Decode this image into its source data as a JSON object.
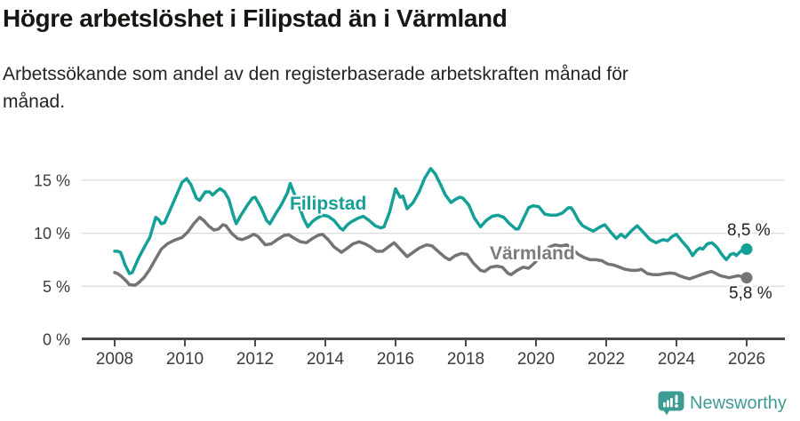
{
  "chart_data": {
    "type": "line",
    "title": "Högre arbetslöshet i Filipstad än i Värmland",
    "subtitle": "Arbetssökande som andel av den registerbaserade arbetskraften månad för månad.",
    "subtitle_lines": [
      "Arbetssökande som andel av den registerbaserade arbetskraften månad för",
      "månad."
    ],
    "unit": "%",
    "grid": "horizontal",
    "legend_position": "inline-labels",
    "x_axis": {
      "tick_values": [
        2008,
        2010,
        2012,
        2014,
        2016,
        2018,
        2020,
        2022,
        2024,
        2026
      ],
      "tick_labels": [
        "2008",
        "2010",
        "2012",
        "2014",
        "2016",
        "2018",
        "2020",
        "2022",
        "2024",
        "2026"
      ],
      "range": [
        2007.05,
        2027.1
      ]
    },
    "y_axis": {
      "tick_values": [
        0,
        5,
        10,
        15
      ],
      "tick_labels": [
        "0 %",
        "5 %",
        "10 %",
        "15 %"
      ],
      "range": [
        0,
        17
      ]
    },
    "series": [
      {
        "name": "Filipstad",
        "line_label": "Filipstad",
        "end_value_label": "8,5 %",
        "end_value": 8.5,
        "color": "#14A096",
        "x": [
          2008.0,
          2008.08,
          2008.17,
          2008.3,
          2008.42,
          2008.5,
          2008.67,
          2008.83,
          2009.0,
          2009.17,
          2009.25,
          2009.33,
          2009.42,
          2009.58,
          2009.75,
          2009.92,
          2010.05,
          2010.17,
          2010.33,
          2010.42,
          2010.58,
          2010.7,
          2010.79,
          2010.92,
          2011.0,
          2011.13,
          2011.25,
          2011.38,
          2011.46,
          2011.58,
          2011.75,
          2011.92,
          2012.0,
          2012.17,
          2012.33,
          2012.42,
          2012.58,
          2012.75,
          2012.92,
          2013.0,
          2013.13,
          2013.25,
          2013.38,
          2013.5,
          2013.63,
          2013.75,
          2013.92,
          2014.08,
          2014.25,
          2014.42,
          2014.5,
          2014.63,
          2014.75,
          2014.92,
          2015.08,
          2015.25,
          2015.42,
          2015.58,
          2015.67,
          2015.83,
          2016.0,
          2016.13,
          2016.21,
          2016.33,
          2016.5,
          2016.67,
          2016.83,
          2017.0,
          2017.13,
          2017.25,
          2017.42,
          2017.58,
          2017.71,
          2017.83,
          2017.92,
          2018.08,
          2018.25,
          2018.42,
          2018.58,
          2018.75,
          2018.92,
          2019.08,
          2019.25,
          2019.42,
          2019.5,
          2019.63,
          2019.79,
          2019.92,
          2020.08,
          2020.25,
          2020.42,
          2020.58,
          2020.75,
          2020.92,
          2021.0,
          2021.08,
          2021.21,
          2021.33,
          2021.5,
          2021.63,
          2021.83,
          2021.96,
          2022.13,
          2022.29,
          2022.42,
          2022.54,
          2022.71,
          2022.88,
          2023.08,
          2023.25,
          2023.42,
          2023.54,
          2023.63,
          2023.75,
          2023.88,
          2024.0,
          2024.17,
          2024.33,
          2024.46,
          2024.58,
          2024.67,
          2024.75,
          2024.88,
          2025.0,
          2025.08,
          2025.17,
          2025.29,
          2025.42,
          2025.54,
          2025.63,
          2025.71,
          2025.83,
          2025.92,
          2026.0
        ],
        "y": [
          8.3,
          8.3,
          8.2,
          7.0,
          6.2,
          6.3,
          7.6,
          8.6,
          9.6,
          11.5,
          11.3,
          10.9,
          11.0,
          12.2,
          13.5,
          14.8,
          15.15,
          14.6,
          13.3,
          13.1,
          13.9,
          13.9,
          13.6,
          14.0,
          14.2,
          13.9,
          13.2,
          11.7,
          10.9,
          11.6,
          12.5,
          13.3,
          13.4,
          12.4,
          11.2,
          10.9,
          11.8,
          12.7,
          13.8,
          14.7,
          13.6,
          12.6,
          11.4,
          10.6,
          11.1,
          11.4,
          11.7,
          11.6,
          11.2,
          10.5,
          10.3,
          10.8,
          11.1,
          11.4,
          11.6,
          11.2,
          10.7,
          10.5,
          10.6,
          12.0,
          14.2,
          13.4,
          13.5,
          12.3,
          12.9,
          13.9,
          15.2,
          16.1,
          15.6,
          14.8,
          13.6,
          12.9,
          13.2,
          13.4,
          13.3,
          12.7,
          11.4,
          10.6,
          11.2,
          11.6,
          11.7,
          11.5,
          10.9,
          10.4,
          10.4,
          11.3,
          12.4,
          12.6,
          12.5,
          11.8,
          11.7,
          11.7,
          11.9,
          12.4,
          12.4,
          12.0,
          11.2,
          10.7,
          10.4,
          10.2,
          10.6,
          10.8,
          10.1,
          9.5,
          9.9,
          9.6,
          10.2,
          10.7,
          10.0,
          9.4,
          9.1,
          9.3,
          9.4,
          9.3,
          9.7,
          9.9,
          9.2,
          8.6,
          7.9,
          8.4,
          8.6,
          8.5,
          9.0,
          9.1,
          8.9,
          8.6,
          8.0,
          7.5,
          8.0,
          8.1,
          7.9,
          8.3,
          8.5,
          8.5
        ]
      },
      {
        "name": "Värmland",
        "line_label": "Värmland",
        "end_value_label": "5,8 %",
        "end_value": 5.8,
        "color": "#747474",
        "x": [
          2008.0,
          2008.08,
          2008.17,
          2008.33,
          2008.42,
          2008.58,
          2008.67,
          2008.83,
          2009.0,
          2009.17,
          2009.33,
          2009.5,
          2009.67,
          2009.75,
          2009.92,
          2010.08,
          2010.25,
          2010.42,
          2010.54,
          2010.67,
          2010.83,
          2010.96,
          2011.08,
          2011.17,
          2011.33,
          2011.5,
          2011.63,
          2011.79,
          2011.96,
          2012.08,
          2012.29,
          2012.46,
          2012.63,
          2012.83,
          2012.96,
          2013.13,
          2013.29,
          2013.46,
          2013.63,
          2013.79,
          2013.92,
          2014.08,
          2014.25,
          2014.46,
          2014.63,
          2014.79,
          2014.96,
          2015.13,
          2015.29,
          2015.46,
          2015.63,
          2015.79,
          2015.96,
          2016.13,
          2016.33,
          2016.5,
          2016.67,
          2016.88,
          2017.04,
          2017.21,
          2017.42,
          2017.54,
          2017.71,
          2017.88,
          2018.04,
          2018.21,
          2018.42,
          2018.54,
          2018.71,
          2018.88,
          2019.04,
          2019.21,
          2019.29,
          2019.46,
          2019.63,
          2019.79,
          2019.96,
          2020.21,
          2020.38,
          2020.54,
          2020.71,
          2020.88,
          2021.04,
          2021.21,
          2021.38,
          2021.54,
          2021.71,
          2021.88,
          2022.04,
          2022.21,
          2022.38,
          2022.54,
          2022.71,
          2022.88,
          2023.0,
          2023.17,
          2023.33,
          2023.5,
          2023.67,
          2023.83,
          2023.96,
          2024.08,
          2024.25,
          2024.38,
          2024.54,
          2024.71,
          2024.88,
          2025.0,
          2025.13,
          2025.25,
          2025.38,
          2025.5,
          2025.63,
          2025.75,
          2025.88,
          2026.0
        ],
        "y": [
          6.3,
          6.2,
          6.0,
          5.5,
          5.15,
          5.1,
          5.3,
          5.8,
          6.6,
          7.6,
          8.5,
          9.0,
          9.3,
          9.4,
          9.6,
          10.1,
          10.9,
          11.5,
          11.2,
          10.7,
          10.3,
          10.4,
          10.8,
          10.7,
          10.0,
          9.5,
          9.4,
          9.6,
          9.9,
          9.7,
          8.9,
          9.0,
          9.4,
          9.8,
          9.85,
          9.5,
          9.2,
          9.1,
          9.5,
          9.8,
          9.9,
          9.4,
          8.7,
          8.2,
          8.6,
          9.0,
          9.2,
          9.0,
          8.7,
          8.3,
          8.3,
          8.7,
          9.1,
          8.5,
          7.8,
          8.2,
          8.6,
          8.9,
          8.8,
          8.3,
          7.7,
          7.5,
          7.9,
          8.1,
          8.0,
          7.2,
          6.5,
          6.4,
          6.8,
          6.9,
          6.8,
          6.2,
          6.1,
          6.5,
          6.8,
          6.7,
          7.2,
          8.2,
          8.7,
          8.9,
          8.8,
          8.9,
          8.5,
          8.0,
          7.7,
          7.5,
          7.5,
          7.4,
          7.1,
          7.0,
          6.8,
          6.6,
          6.5,
          6.5,
          6.6,
          6.2,
          6.1,
          6.1,
          6.2,
          6.25,
          6.2,
          6.0,
          5.8,
          5.7,
          5.9,
          6.1,
          6.3,
          6.4,
          6.2,
          6.0,
          5.9,
          5.8,
          5.9,
          6.0,
          5.9,
          5.8
        ]
      }
    ]
  },
  "footer": {
    "brand": "Newsworthy",
    "brand_color": "#3E9B94"
  }
}
